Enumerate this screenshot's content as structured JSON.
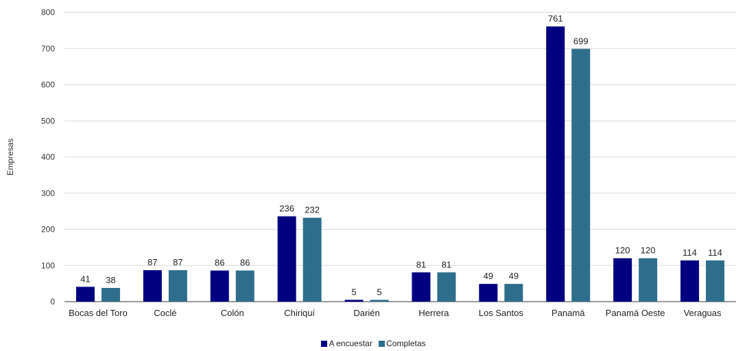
{
  "chart_data": {
    "type": "bar",
    "title": "",
    "xlabel": "",
    "ylabel": "Empresas",
    "ylim": [
      0,
      800
    ],
    "yticks": [
      0,
      100,
      200,
      300,
      400,
      500,
      600,
      700,
      800
    ],
    "grid": true,
    "legend_position": "bottom",
    "categories": [
      "Bocas del Toro",
      "Coclé",
      "Colón",
      "Chiriquí",
      "Darién",
      "Herrera",
      "Los Santos",
      "Panamá",
      "Panamá Oeste",
      "Veraguas"
    ],
    "series": [
      {
        "name": "A encuestar",
        "color": "#000080",
        "values": [
          41,
          87,
          86,
          236,
          5,
          81,
          49,
          761,
          120,
          114
        ]
      },
      {
        "name": "Completas",
        "color": "#2E6E8C",
        "values": [
          38,
          87,
          86,
          232,
          5,
          81,
          49,
          699,
          120,
          114
        ]
      }
    ]
  }
}
